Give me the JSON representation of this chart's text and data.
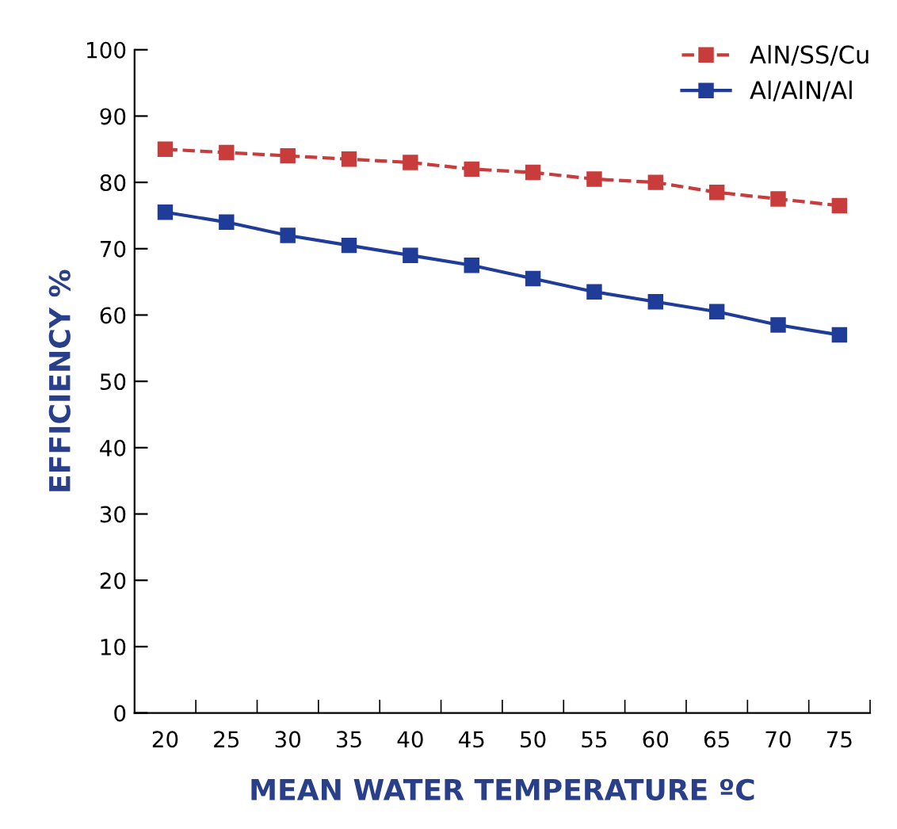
{
  "chart_data": {
    "type": "line",
    "xlabel": "MEAN WATER TEMPERATURE ºC",
    "ylabel": "EFFICIENCY %",
    "categories": [
      "20",
      "25",
      "30",
      "35",
      "40",
      "45",
      "50",
      "55",
      "60",
      "65",
      "70",
      "75"
    ],
    "series": [
      {
        "name": "AlN/SS/Cu",
        "color": "#c83c3c",
        "line_style": "dashed",
        "values": [
          85,
          84.5,
          84,
          83.5,
          83,
          82,
          81.5,
          80.5,
          80,
          78.5,
          77.5,
          76.5
        ]
      },
      {
        "name": "Al/AlN/Al",
        "color": "#1f3c99",
        "line_style": "solid",
        "values": [
          75.5,
          74,
          72,
          70.5,
          69,
          67.5,
          65.5,
          63.5,
          62,
          60.5,
          58.5,
          57
        ]
      }
    ],
    "ylim": [
      0,
      100
    ],
    "yticks": [
      0,
      10,
      20,
      30,
      40,
      50,
      60,
      70,
      80,
      90,
      100
    ],
    "marker": "square",
    "legend": "top right",
    "grid": false
  }
}
